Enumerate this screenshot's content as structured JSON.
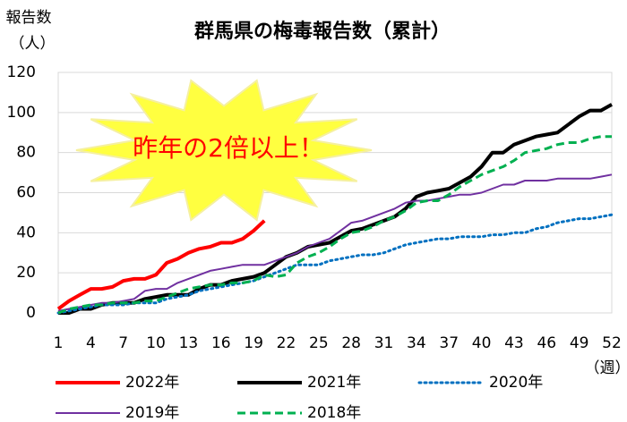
{
  "chart_data": {
    "type": "line",
    "title": "群馬県の梅毒報告数（累計）",
    "ylabel": [
      "報告数",
      "（人）"
    ],
    "xlabel": "（週）",
    "annotation": "昨年の2倍以上！",
    "x": [
      1,
      2,
      3,
      4,
      5,
      6,
      7,
      8,
      9,
      10,
      11,
      12,
      13,
      14,
      15,
      16,
      17,
      18,
      19,
      20,
      21,
      22,
      23,
      24,
      25,
      26,
      27,
      28,
      29,
      30,
      31,
      32,
      33,
      34,
      35,
      36,
      37,
      38,
      39,
      40,
      41,
      42,
      43,
      44,
      45,
      46,
      47,
      48,
      49,
      50,
      51,
      52
    ],
    "xlim": [
      1,
      52
    ],
    "xticks": [
      1,
      4,
      7,
      10,
      13,
      16,
      19,
      22,
      25,
      28,
      31,
      34,
      37,
      40,
      43,
      46,
      49,
      52
    ],
    "ylim": [
      0,
      120
    ],
    "yticks": [
      0,
      20,
      40,
      60,
      80,
      100,
      120
    ],
    "grid": true,
    "series": [
      {
        "name": "2022年",
        "color": "#ff0000",
        "line_style": "thick",
        "values": [
          2,
          6,
          9,
          12,
          12,
          13,
          16,
          17,
          17,
          19,
          25,
          27,
          30,
          32,
          33,
          35,
          35,
          37,
          41,
          46,
          null,
          null,
          null,
          null,
          null,
          null,
          null,
          null,
          null,
          null,
          null,
          null,
          null,
          null,
          null,
          null,
          null,
          null,
          null,
          null,
          null,
          null,
          null,
          null,
          null,
          null,
          null,
          null,
          null,
          null,
          null,
          null
        ]
      },
      {
        "name": "2021年",
        "color": "#000000",
        "line_style": "thick",
        "values": [
          0,
          0,
          2,
          2,
          4,
          5,
          5,
          5,
          7,
          8,
          9,
          9,
          9,
          12,
          14,
          14,
          16,
          17,
          18,
          20,
          24,
          28,
          30,
          33,
          34,
          35,
          38,
          41,
          42,
          44,
          46,
          48,
          52,
          58,
          60,
          61,
          62,
          65,
          68,
          73,
          80,
          80,
          84,
          86,
          88,
          89,
          90,
          94,
          98,
          101,
          101,
          104
        ]
      },
      {
        "name": "2020年",
        "color": "#0070c0",
        "line_style": "dotted",
        "values": [
          0,
          1,
          2,
          3,
          4,
          4,
          4,
          5,
          5,
          5,
          7,
          8,
          9,
          11,
          12,
          13,
          14,
          15,
          16,
          18,
          20,
          22,
          24,
          24,
          24,
          26,
          27,
          28,
          29,
          29,
          30,
          32,
          34,
          35,
          36,
          37,
          37,
          38,
          38,
          38,
          39,
          39,
          40,
          40,
          42,
          43,
          45,
          46,
          47,
          47,
          48,
          49
        ]
      },
      {
        "name": "2019年",
        "color": "#7030a0",
        "line_style": "thin",
        "values": [
          1,
          2,
          3,
          4,
          5,
          5,
          6,
          7,
          11,
          12,
          12,
          15,
          17,
          19,
          21,
          22,
          23,
          24,
          24,
          24,
          26,
          28,
          30,
          33,
          35,
          37,
          41,
          45,
          46,
          48,
          50,
          52,
          55,
          56,
          56,
          57,
          58,
          59,
          59,
          60,
          62,
          64,
          64,
          66,
          66,
          66,
          67,
          67,
          67,
          67,
          68,
          69
        ]
      },
      {
        "name": "2018年",
        "color": "#00b050",
        "line_style": "dashed",
        "values": [
          0,
          2,
          3,
          4,
          4,
          5,
          5,
          5,
          6,
          6,
          8,
          10,
          12,
          13,
          14,
          14,
          15,
          15,
          16,
          19,
          18,
          19,
          25,
          28,
          30,
          33,
          37,
          40,
          41,
          43,
          46,
          48,
          51,
          55,
          56,
          56,
          59,
          63,
          66,
          69,
          71,
          73,
          76,
          80,
          81,
          82,
          84,
          85,
          85,
          87,
          88,
          88
        ]
      }
    ]
  }
}
